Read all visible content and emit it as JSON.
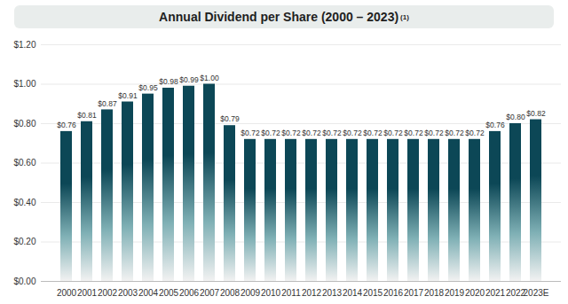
{
  "chart_data": {
    "type": "bar",
    "title": "Annual Dividend per Share (2000 – 2023)",
    "title_note": "(1)",
    "categories": [
      "2000",
      "2001",
      "2002",
      "2003",
      "2004",
      "2005",
      "2006",
      "2007",
      "2008",
      "2009",
      "2010",
      "2011",
      "2012",
      "2013",
      "2014",
      "2015",
      "2016",
      "2017",
      "2018",
      "2019",
      "2020",
      "2021",
      "2022",
      "2023E"
    ],
    "values": [
      0.76,
      0.81,
      0.87,
      0.91,
      0.95,
      0.98,
      0.99,
      1.0,
      0.79,
      0.72,
      0.72,
      0.72,
      0.72,
      0.72,
      0.72,
      0.72,
      0.72,
      0.72,
      0.72,
      0.72,
      0.72,
      0.76,
      0.8,
      0.82
    ],
    "value_labels": [
      "$0.76",
      "$0.81",
      "$0.87",
      "$0.91",
      "$0.95",
      "$0.98",
      "$0.99",
      "$1.00",
      "$0.79",
      "$0.72",
      "$0.72",
      "$0.72",
      "$0.72",
      "$0.72",
      "$0.72",
      "$0.72",
      "$0.72",
      "$0.72",
      "$0.72",
      "$0.72",
      "$0.72",
      "$0.76",
      "$0.80",
      "$0.82"
    ],
    "data_labels": true,
    "color": "#0c4756",
    "ylim": [
      0,
      1.2
    ],
    "yticks": [
      {
        "value": 0,
        "label": "$0.00"
      },
      {
        "value": 0.2,
        "label": "$0.20"
      },
      {
        "value": 0.4,
        "label": "$0.40"
      },
      {
        "value": 0.6,
        "label": "$0.60"
      },
      {
        "value": 0.8,
        "label": "$0.80"
      },
      {
        "value": 1.0,
        "label": "$1.00"
      },
      {
        "value": 1.2,
        "label": "$1.20"
      }
    ],
    "grid": true
  }
}
